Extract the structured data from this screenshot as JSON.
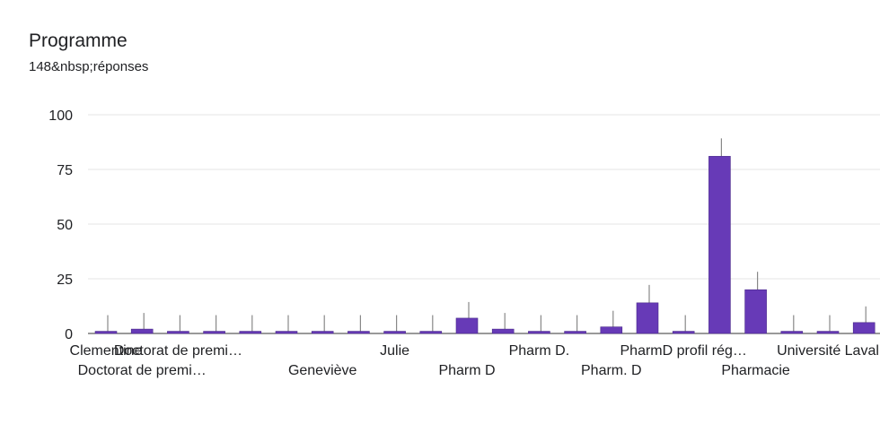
{
  "header": {
    "title": "Programme",
    "responses": "148&nbsp;réponses"
  },
  "chart_data": {
    "type": "bar",
    "title": "Programme",
    "subtitle": "148&nbsp;réponses",
    "xlabel": "",
    "ylabel": "",
    "ylim": [
      0,
      100
    ],
    "yticks": [
      0,
      25,
      50,
      75,
      100
    ],
    "grid": true,
    "bar_color": "#673ab7",
    "categories": [
      "Clementine",
      "Doctorat de premi…",
      "Doctorat de premi…",
      "",
      "",
      "",
      "Geneviève",
      "",
      "Julie",
      "",
      "Pharm D",
      "",
      "Pharm D.",
      "",
      "Pharm. D",
      "",
      "PharmD profil rég…",
      "",
      "Pharmacie",
      "",
      "Université Laval",
      ""
    ],
    "values": [
      1,
      2,
      1,
      1,
      1,
      1,
      1,
      1,
      1,
      1,
      7,
      2,
      1,
      1,
      3,
      14,
      1,
      81,
      20,
      1,
      1,
      5
    ]
  }
}
